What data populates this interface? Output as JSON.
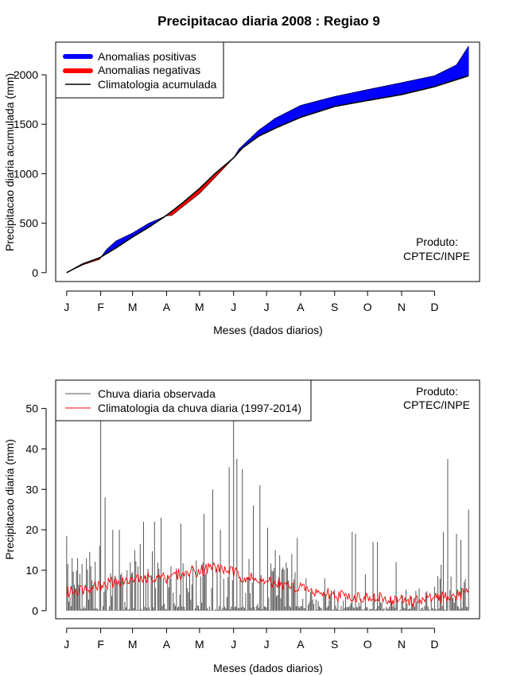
{
  "title": "Precipitacao diaria 2008 : Regiao 9",
  "colors": {
    "positive": "#0000ff",
    "negative": "#ff0000",
    "climatology_line": "#000000",
    "daily_bars": "#555555",
    "daily_clim": "#ff0000"
  },
  "months": [
    "J",
    "F",
    "M",
    "A",
    "M",
    "J",
    "J",
    "A",
    "S",
    "O",
    "N",
    "D"
  ],
  "product_label": [
    "Produto:",
    "CPTEC/INPE"
  ],
  "chart_data": [
    {
      "type": "area",
      "title": "Precipitacao diaria 2008 : Regiao 9",
      "xlabel": "Meses (dados diarios)",
      "ylabel": "Precipitacao diaria acumulada (mm)",
      "ylim": [
        -90,
        2330
      ],
      "xlim": [
        -10,
        376
      ],
      "yticks": [
        0,
        500,
        1000,
        1500,
        2000
      ],
      "month_ticks_day": [
        0,
        31,
        60,
        91,
        121,
        152,
        182,
        213,
        244,
        274,
        305,
        335
      ],
      "legend": [
        "Anomalias positivas",
        "Anomalias negativas",
        "Climatologia acumulada"
      ],
      "legend_position": "top-left",
      "climatology_keypoints": {
        "day": [
          0,
          15,
          30,
          45,
          60,
          75,
          91,
          105,
          121,
          135,
          152,
          160,
          175,
          190,
          213,
          230,
          244,
          274,
          305,
          335,
          366
        ],
        "value": [
          0,
          90,
          150,
          250,
          360,
          460,
          580,
          700,
          850,
          1000,
          1160,
          1260,
          1380,
          1460,
          1570,
          1630,
          1680,
          1740,
          1800,
          1880,
          1990
        ]
      },
      "observed_keypoints": {
        "day": [
          0,
          15,
          30,
          36,
          45,
          60,
          75,
          91,
          96,
          105,
          121,
          135,
          152,
          157,
          175,
          190,
          213,
          230,
          244,
          274,
          305,
          335,
          355,
          366
        ],
        "value": [
          0,
          80,
          135,
          230,
          320,
          400,
          500,
          575,
          580,
          660,
          800,
          960,
          1160,
          1250,
          1440,
          1560,
          1690,
          1740,
          1780,
          1850,
          1920,
          1990,
          2100,
          2290
        ]
      }
    },
    {
      "type": "bar",
      "xlabel": "Meses (dados diarios)",
      "ylabel": "Precipitacao diaria (mm)",
      "ylim": [
        -2,
        57
      ],
      "xlim": [
        -10,
        376
      ],
      "yticks": [
        0,
        10,
        20,
        30,
        40,
        50
      ],
      "month_ticks_day": [
        0,
        31,
        60,
        91,
        121,
        152,
        182,
        213,
        244,
        274,
        305,
        335
      ],
      "legend": [
        "Chuva diaria observada",
        "Climatologia da chuva diaria (1997-2014)"
      ],
      "legend_position": "top-left",
      "observed_peaks": {
        "day": [
          0,
          5,
          10,
          22,
          30,
          31,
          35,
          42,
          48,
          55,
          62,
          70,
          80,
          86,
          95,
          104,
          115,
          125,
          133,
          140,
          148,
          152,
          155,
          160,
          170,
          176,
          183,
          190,
          205,
          210,
          218,
          235,
          260,
          263,
          272,
          279,
          283,
          300,
          321,
          343,
          347,
          355,
          359,
          366
        ],
        "value": [
          18.5,
          13,
          13,
          11,
          16,
          47,
          28,
          20,
          20,
          10,
          15,
          22,
          22,
          23,
          11,
          21.5,
          11,
          24,
          30,
          20,
          35.5,
          47,
          37.5,
          35,
          26,
          31,
          20.5,
          15,
          14,
          18,
          8,
          8,
          19.5,
          19,
          9,
          17,
          17,
          12,
          5.5,
          19.5,
          37.5,
          19,
          17.5,
          25
        ]
      },
      "climatology_keypoints": {
        "day": [
          0,
          15,
          30,
          45,
          60,
          75,
          91,
          105,
          121,
          135,
          152,
          166,
          182,
          197,
          213,
          229,
          244,
          259,
          274,
          290,
          305,
          320,
          335,
          350,
          366
        ],
        "value": [
          4.5,
          5.5,
          6.5,
          7,
          7.5,
          8,
          8.5,
          9,
          10,
          11,
          9,
          8,
          7,
          6,
          5.5,
          4.5,
          4,
          3.5,
          3,
          2.5,
          2.5,
          2.5,
          3,
          3.5,
          5
        ]
      }
    }
  ]
}
